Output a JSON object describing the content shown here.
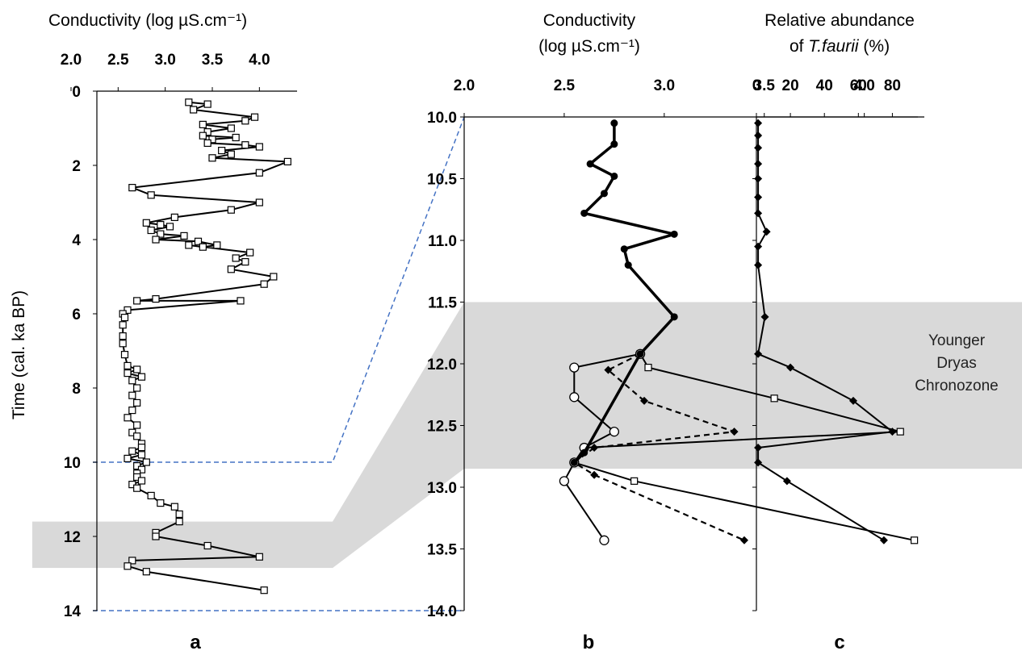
{
  "colors": {
    "shade": "#d9d9d9",
    "guide": "#4472c4",
    "line": "#000000",
    "marker_fill": "#ffffff"
  },
  "chart_data": [
    {
      "panel": "a",
      "type": "line",
      "title": "Conductivity  (log  µS.cm⁻¹)",
      "xlabel": "Conductivity  (log  µS.cm⁻¹)",
      "ylabel": "Time (cal. ka BP)",
      "panel_label": "a",
      "xlim": [
        2.0,
        4.4
      ],
      "ylim": [
        0,
        14
      ],
      "x_ticks": [
        "2.0",
        "2.5",
        "3.0",
        "3.5",
        "4.0"
      ],
      "y_ticks": [
        "0",
        "2",
        "4",
        "6",
        "8",
        "10",
        "12",
        "14"
      ],
      "series": [
        {
          "marker": "open-square",
          "points": [
            [
              3.25,
              0.3
            ],
            [
              3.45,
              0.35
            ],
            [
              3.3,
              0.5
            ],
            [
              3.95,
              0.7
            ],
            [
              3.85,
              0.8
            ],
            [
              3.4,
              0.9
            ],
            [
              3.7,
              1.0
            ],
            [
              3.45,
              1.1
            ],
            [
              3.4,
              1.2
            ],
            [
              3.75,
              1.25
            ],
            [
              3.5,
              1.3
            ],
            [
              3.45,
              1.4
            ],
            [
              3.85,
              1.45
            ],
            [
              4.0,
              1.5
            ],
            [
              3.6,
              1.6
            ],
            [
              3.7,
              1.7
            ],
            [
              3.5,
              1.8
            ],
            [
              4.3,
              1.9
            ],
            [
              4.0,
              2.2
            ],
            [
              2.65,
              2.6
            ],
            [
              2.85,
              2.8
            ],
            [
              4.0,
              3.0
            ],
            [
              3.7,
              3.2
            ],
            [
              3.1,
              3.4
            ],
            [
              2.8,
              3.55
            ],
            [
              2.95,
              3.6
            ],
            [
              3.05,
              3.65
            ],
            [
              2.85,
              3.75
            ],
            [
              2.95,
              3.85
            ],
            [
              3.2,
              3.9
            ],
            [
              2.9,
              4.0
            ],
            [
              3.35,
              4.05
            ],
            [
              3.55,
              4.15
            ],
            [
              3.4,
              4.2
            ],
            [
              3.25,
              4.15
            ],
            [
              3.9,
              4.35
            ],
            [
              3.75,
              4.5
            ],
            [
              3.85,
              4.6
            ],
            [
              3.7,
              4.8
            ],
            [
              4.15,
              5.0
            ],
            [
              4.05,
              5.2
            ],
            [
              2.9,
              5.6
            ],
            [
              2.7,
              5.65
            ],
            [
              3.8,
              5.65
            ],
            [
              2.6,
              5.9
            ],
            [
              2.55,
              6.0
            ],
            [
              2.57,
              6.1
            ],
            [
              2.55,
              6.3
            ],
            [
              2.55,
              6.6
            ],
            [
              2.55,
              6.8
            ],
            [
              2.57,
              7.1
            ],
            [
              2.6,
              7.4
            ],
            [
              2.7,
              7.5
            ],
            [
              2.6,
              7.6
            ],
            [
              2.75,
              7.7
            ],
            [
              2.65,
              7.8
            ],
            [
              2.7,
              8.0
            ],
            [
              2.65,
              8.2
            ],
            [
              2.7,
              8.4
            ],
            [
              2.65,
              8.6
            ],
            [
              2.6,
              8.8
            ],
            [
              2.7,
              9.0
            ],
            [
              2.65,
              9.2
            ],
            [
              2.7,
              9.3
            ],
            [
              2.75,
              9.5
            ],
            [
              2.75,
              9.6
            ],
            [
              2.65,
              9.7
            ],
            [
              2.75,
              9.8
            ],
            [
              2.6,
              9.9
            ],
            [
              2.8,
              10.0
            ],
            [
              2.7,
              10.1
            ],
            [
              2.75,
              10.2
            ],
            [
              2.7,
              10.3
            ],
            [
              2.7,
              10.4
            ],
            [
              2.75,
              10.5
            ],
            [
              2.65,
              10.6
            ],
            [
              2.7,
              10.7
            ],
            [
              2.85,
              10.9
            ],
            [
              2.95,
              11.1
            ],
            [
              3.1,
              11.2
            ],
            [
              3.15,
              11.4
            ],
            [
              3.15,
              11.6
            ],
            [
              2.9,
              11.9
            ],
            [
              2.9,
              12.0
            ],
            [
              3.45,
              12.25
            ],
            [
              4.0,
              12.55
            ],
            [
              2.65,
              12.65
            ],
            [
              2.6,
              12.8
            ],
            [
              2.8,
              12.95
            ],
            [
              4.05,
              13.45
            ]
          ]
        }
      ],
      "shaded_range_y": [
        11.6,
        12.85
      ],
      "guide_lines_y": [
        10.0,
        14.0
      ]
    },
    {
      "panel": "b",
      "type": "line",
      "title_line1": "Conductivity",
      "title_line2": "(log µS.cm⁻¹)",
      "panel_label": "b",
      "xlim": [
        2.0,
        4.3
      ],
      "ylim": [
        10.0,
        14.0
      ],
      "x_ticks": [
        "2.0",
        "2.5",
        "3.0",
        "3.5",
        "4.0"
      ],
      "y_ticks": [
        "10.0",
        "10.5",
        "11.0",
        "11.5",
        "12.0",
        "12.5",
        "13.0",
        "13.5",
        "14.0"
      ],
      "series": [
        {
          "marker": "filled-circle",
          "style": "solid-thick",
          "points": [
            [
              2.75,
              10.05
            ],
            [
              2.75,
              10.22
            ],
            [
              2.63,
              10.38
            ],
            [
              2.75,
              10.48
            ],
            [
              2.7,
              10.62
            ],
            [
              2.6,
              10.78
            ],
            [
              3.05,
              10.95
            ],
            [
              2.8,
              11.07
            ],
            [
              2.82,
              11.2
            ],
            [
              3.05,
              11.62
            ],
            [
              2.88,
              11.92
            ],
            [
              2.6,
              12.72
            ],
            [
              2.55,
              12.8
            ]
          ]
        },
        {
          "marker": "open-circle",
          "style": "solid",
          "points": [
            [
              2.88,
              11.92
            ],
            [
              2.55,
              12.03
            ],
            [
              2.55,
              12.27
            ],
            [
              2.75,
              12.55
            ],
            [
              2.6,
              12.68
            ],
            [
              2.55,
              12.8
            ],
            [
              2.5,
              12.95
            ],
            [
              2.7,
              13.43
            ]
          ]
        },
        {
          "marker": "open-square",
          "style": "solid",
          "points": [
            [
              2.88,
              11.92
            ],
            [
              2.92,
              12.03
            ],
            [
              3.55,
              12.28
            ],
            [
              4.18,
              12.55
            ],
            [
              2.6,
              12.68
            ],
            [
              2.55,
              12.8
            ],
            [
              2.85,
              12.95
            ],
            [
              4.25,
              13.43
            ]
          ]
        },
        {
          "marker": "filled-diamond",
          "style": "dashed",
          "points": [
            [
              2.88,
              11.92
            ],
            [
              2.72,
              12.05
            ],
            [
              2.9,
              12.3
            ],
            [
              3.35,
              12.55
            ],
            [
              2.65,
              12.68
            ],
            [
              2.55,
              12.8
            ],
            [
              2.65,
              12.9
            ],
            [
              3.4,
              13.43
            ]
          ]
        }
      ],
      "shaded_range_y": [
        11.5,
        12.85
      ]
    },
    {
      "panel": "c",
      "type": "line",
      "title_line1": "Relative abundance",
      "title_line2_prefix": "of ",
      "title_line2_italic": "T.faurii",
      "title_line2_suffix": " (%)",
      "panel_label": "c",
      "xlim": [
        0,
        95
      ],
      "ylim": [
        10.0,
        14.0
      ],
      "x_ticks": [
        "0",
        "20",
        "40",
        "60",
        "80"
      ],
      "series": [
        {
          "marker": "filled-diamond",
          "style": "solid",
          "points": [
            [
              1,
              10.05
            ],
            [
              1,
              10.15
            ],
            [
              1,
              10.25
            ],
            [
              1,
              10.38
            ],
            [
              1,
              10.5
            ],
            [
              1,
              10.65
            ],
            [
              1,
              10.78
            ],
            [
              6,
              10.93
            ],
            [
              1,
              11.05
            ],
            [
              1,
              11.2
            ],
            [
              5,
              11.62
            ],
            [
              1,
              11.92
            ],
            [
              20,
              12.03
            ],
            [
              57,
              12.3
            ],
            [
              80,
              12.55
            ],
            [
              1,
              12.68
            ],
            [
              1,
              12.8
            ],
            [
              18,
              12.95
            ],
            [
              75,
              13.43
            ]
          ]
        }
      ],
      "annotation": [
        "Younger",
        "Dryas",
        "Chronozone"
      ],
      "shaded_range_y": [
        11.5,
        12.85
      ]
    }
  ]
}
